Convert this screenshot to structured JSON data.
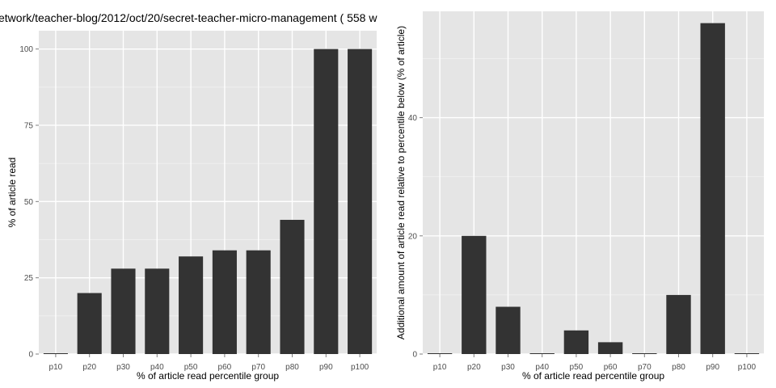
{
  "figure": {
    "title": "etwork/teacher-blog/2012/oct/20/secret-teacher-micro-management ( 558 w"
  },
  "chart_data": [
    {
      "type": "bar",
      "title": "etwork/teacher-blog/2012/oct/20/secret-teacher-micro-management ( 558 w",
      "xlabel": "% of article read percentile group",
      "ylabel": "% of article read",
      "categories": [
        "p10",
        "p20",
        "p30",
        "p40",
        "p50",
        "p60",
        "p70",
        "p80",
        "p90",
        "p100"
      ],
      "values": [
        0,
        20,
        28,
        28,
        32,
        34,
        34,
        44,
        100,
        100
      ],
      "ylim": [
        0,
        106
      ],
      "yticks": [
        0,
        25,
        50,
        75,
        100
      ],
      "grid": true,
      "bar_color": "#333333",
      "panel_color": "#e5e5e5"
    },
    {
      "type": "bar",
      "title": "",
      "xlabel": "% of article read percentile group",
      "ylabel": "Additional amount of article read relative to percentile below (% of article)",
      "categories": [
        "p10",
        "p20",
        "p30",
        "p40",
        "p50",
        "p60",
        "p70",
        "p80",
        "p90",
        "p100"
      ],
      "values": [
        0,
        20,
        8,
        0,
        4,
        2,
        0,
        10,
        56,
        0
      ],
      "ylim": [
        0,
        58
      ],
      "yticks": [
        0,
        20,
        40
      ],
      "grid": true,
      "bar_color": "#333333",
      "panel_color": "#e5e5e5"
    }
  ]
}
